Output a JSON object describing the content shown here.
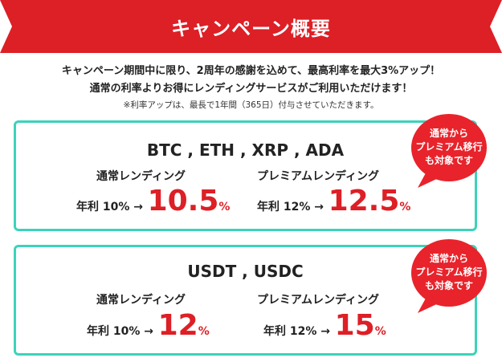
{
  "colors": {
    "banner_red": "#dd1f26",
    "accent_red": "#dd1f26",
    "card_border_teal": "#3cd3ba",
    "bubble_red": "#e8232b"
  },
  "banner": {
    "title": "キャンペーン概要"
  },
  "intro": {
    "line1": "キャンペーン期間中に限り、2周年の感謝を込めて、最高利率を最大3%アップ！",
    "line2": "通常の利率よりお得にレンディングサービスがご利用いただけます！",
    "note": "※利率アップは、最長で1年間（365日）付与させていただきます。"
  },
  "cards": [
    {
      "coins": "BTC , ETH , XRP , ADA",
      "normal": {
        "label": "通常レンディング",
        "rate_prefix": "年利 10% →",
        "rate_value": "10.5",
        "rate_unit": "%"
      },
      "premium": {
        "label": "プレミアムレンディング",
        "rate_prefix": "年利 12% →",
        "rate_value": "12.5",
        "rate_unit": "%"
      },
      "bubble": {
        "line1": "通常から",
        "line2": "プレミアム移行",
        "line3": "も対象です"
      }
    },
    {
      "coins": "USDT , USDC",
      "normal": {
        "label": "通常レンディング",
        "rate_prefix": "年利 10% →",
        "rate_value": "12",
        "rate_unit": "%"
      },
      "premium": {
        "label": "プレミアムレンディング",
        "rate_prefix": "年利 12% →",
        "rate_value": "15",
        "rate_unit": "%"
      },
      "bubble": {
        "line1": "通常から",
        "line2": "プレミアム移行",
        "line3": "も対象です"
      }
    }
  ]
}
